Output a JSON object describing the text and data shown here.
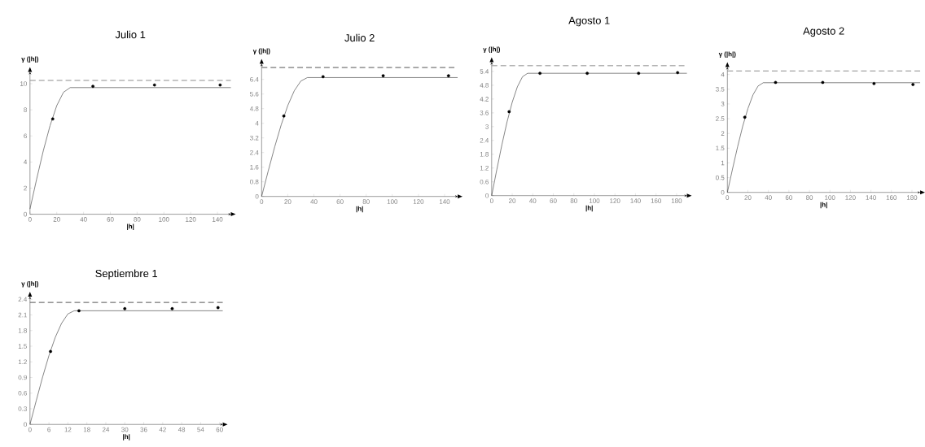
{
  "chart_data": [
    {
      "type": "scatter",
      "title": "Julio 1",
      "xlabel": "|h|",
      "ylabel": "γ (|h|)",
      "xlim": [
        0,
        150
      ],
      "ylim": [
        0,
        10.9
      ],
      "xticks": [
        0,
        20,
        40,
        60,
        80,
        100,
        120,
        140
      ],
      "yticks": [
        0,
        2,
        4,
        6,
        8,
        10
      ],
      "ref_lines": [
        {
          "axis": "y",
          "value": 10.25,
          "color": "#8c8c8c",
          "line_style": "dashed"
        }
      ],
      "series": [
        {
          "type": "line",
          "marker": "none",
          "color": "#333333",
          "x": [
            0,
            5,
            10,
            15,
            20,
            25,
            30,
            150
          ],
          "values": [
            0.4,
            2.7,
            4.88,
            6.79,
            8.32,
            9.34,
            9.7,
            9.7
          ]
        },
        {
          "type": "scatter",
          "color": "#000000",
          "x": [
            17,
            47,
            93,
            142
          ],
          "values": [
            7.3,
            9.8,
            9.9,
            9.9
          ]
        }
      ]
    },
    {
      "type": "scatter",
      "title": "Julio 2",
      "xlabel": "|h|",
      "ylabel": "γ (|h|)",
      "xlim": [
        0,
        150
      ],
      "ylim": [
        0,
        7.25
      ],
      "xticks": [
        0,
        20,
        40,
        60,
        80,
        100,
        120,
        140
      ],
      "yticks": [
        0,
        0.8,
        1.6,
        2.4,
        3.2,
        4,
        4.8,
        5.6,
        6.4
      ],
      "ref_lines": [
        {
          "axis": "y",
          "value": 7.05,
          "color": "#555555",
          "line_style": "dashed"
        }
      ],
      "series": [
        {
          "type": "line",
          "marker": "none",
          "color": "#333333",
          "x": [
            0,
            5,
            10,
            15,
            20,
            25,
            30,
            35,
            150
          ],
          "values": [
            0,
            1.38,
            2.71,
            3.92,
            4.97,
            5.78,
            6.31,
            6.5,
            6.5
          ]
        },
        {
          "type": "scatter",
          "color": "#000000",
          "x": [
            17,
            47,
            93,
            143
          ],
          "values": [
            4.4,
            6.55,
            6.6,
            6.6
          ]
        }
      ]
    },
    {
      "type": "scatter",
      "title": "Agosto 1",
      "xlabel": "|h|",
      "ylabel": "γ (|h|)",
      "xlim": [
        0,
        190
      ],
      "ylim": [
        0,
        5.8
      ],
      "xticks": [
        0,
        20,
        40,
        60,
        80,
        100,
        120,
        140,
        160,
        180
      ],
      "yticks": [
        0,
        0.6,
        1.2,
        1.8,
        2.4,
        3,
        3.6,
        4.2,
        4.8,
        5.4
      ],
      "ref_lines": [
        {
          "axis": "y",
          "value": 5.65,
          "color": "#8c8c8c",
          "line_style": "dashed"
        }
      ],
      "series": [
        {
          "type": "line",
          "marker": "none",
          "color": "#333333",
          "x": [
            0,
            5,
            10,
            15,
            20,
            25,
            30,
            35,
            190
          ],
          "values": [
            0,
            1.13,
            2.22,
            3.21,
            4.06,
            4.73,
            5.17,
            5.32,
            5.32
          ]
        },
        {
          "type": "scatter",
          "color": "#000000",
          "x": [
            17,
            47,
            93,
            143,
            181
          ],
          "values": [
            3.65,
            5.32,
            5.32,
            5.32,
            5.35
          ]
        }
      ]
    },
    {
      "type": "scatter",
      "title": "Agosto 2",
      "xlabel": "|h|",
      "ylabel": "γ (|h|)",
      "xlim": [
        0,
        188
      ],
      "ylim": [
        0,
        4.25
      ],
      "xticks": [
        0,
        20,
        40,
        60,
        80,
        100,
        120,
        140,
        160,
        180
      ],
      "yticks": [
        0,
        0.5,
        1,
        1.5,
        2,
        2.5,
        3,
        3.5,
        4
      ],
      "ref_lines": [
        {
          "axis": "y",
          "value": 4.12,
          "color": "#8c8c8c",
          "line_style": "dashed"
        }
      ],
      "series": [
        {
          "type": "line",
          "marker": "none",
          "color": "#333333",
          "x": [
            0,
            5,
            10,
            15,
            20,
            25,
            30,
            35,
            188
          ],
          "values": [
            0,
            0.79,
            1.55,
            2.25,
            2.84,
            3.31,
            3.61,
            3.72,
            3.72
          ]
        },
        {
          "type": "scatter",
          "color": "#000000",
          "x": [
            17,
            47,
            93,
            143,
            181
          ],
          "values": [
            2.55,
            3.73,
            3.73,
            3.69,
            3.66
          ]
        }
      ]
    },
    {
      "type": "scatter",
      "title": "Septiembre 1",
      "xlabel": "|h|",
      "ylabel": "γ (|h|)",
      "xlim": [
        0,
        61
      ],
      "ylim": [
        0,
        2.45
      ],
      "xticks": [
        0,
        6,
        12,
        18,
        24,
        30,
        36,
        42,
        48,
        54,
        60
      ],
      "yticks": [
        0,
        0.3,
        0.6,
        0.9,
        1.2,
        1.5,
        1.8,
        2.1,
        2.4
      ],
      "ref_lines": [
        {
          "axis": "y",
          "value": 2.34,
          "color": "#555555",
          "line_style": "dashed"
        }
      ],
      "series": [
        {
          "type": "line",
          "marker": "none",
          "color": "#333333",
          "x": [
            0,
            2,
            4,
            6,
            8,
            10,
            12,
            14,
            61
          ],
          "values": [
            0,
            0.46,
            0.91,
            1.32,
            1.67,
            1.94,
            2.12,
            2.18,
            2.18
          ]
        },
        {
          "type": "scatter",
          "color": "#000000",
          "x": [
            6.5,
            15.5,
            30,
            45,
            59.5
          ],
          "values": [
            1.4,
            2.18,
            2.22,
            2.22,
            2.24
          ]
        }
      ]
    }
  ]
}
